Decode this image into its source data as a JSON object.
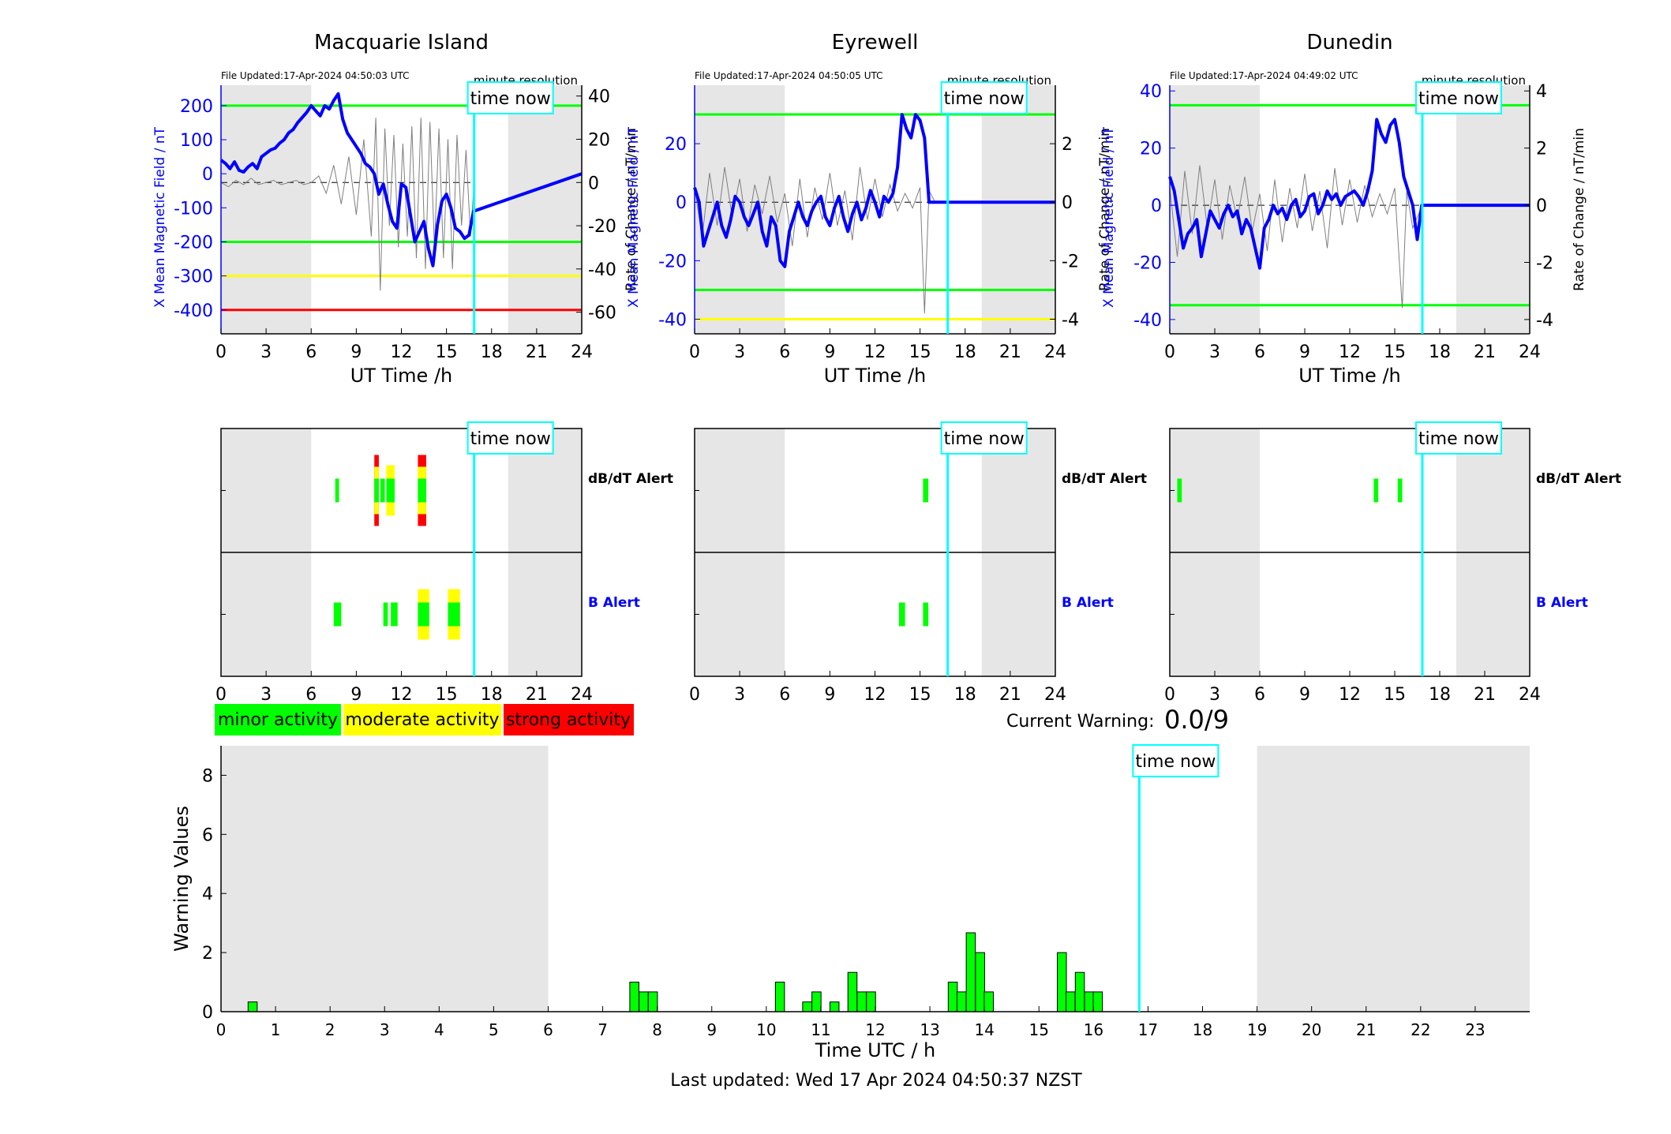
{
  "colors": {
    "minor": "#00ff00",
    "moderate": "#ffff00",
    "strong": "#ff0000",
    "now": "#00ffff",
    "field": "#0000ff",
    "night": "#e6e6e6"
  },
  "legend": {
    "minor": "minor activity",
    "moderate": "moderate activity",
    "strong": "strong activity"
  },
  "current_warning": {
    "label": "Current Warning:",
    "value": "0.0/9"
  },
  "footer": "Last updated: Wed 17 Apr 2024 04:50:37 NZST",
  "time_now_label": "time now",
  "minute_resolution_label": "minute resolution",
  "alert_labels": {
    "dbdt": "dB/dT Alert",
    "b": "B Alert"
  },
  "chart_data": [
    {
      "type": "line",
      "title": "Macquarie Island",
      "file_updated": "File Updated:17-Apr-2024 04:50:03 UTC",
      "xlabel": "UT Time /h",
      "ylabel": "X Mean Magnetic Field / nT",
      "y2label": "Rate of Change / nT/min",
      "xlim": [
        0,
        24
      ],
      "xticks": [
        0,
        3,
        6,
        9,
        12,
        15,
        18,
        21,
        24
      ],
      "ylim": [
        -470,
        260
      ],
      "yticks": [
        200,
        100,
        0,
        -100,
        -200,
        -300,
        -400
      ],
      "y2lim": [
        -70,
        45
      ],
      "y2ticks": [
        40,
        20,
        0,
        -20,
        -40,
        -60
      ],
      "thresholds": [
        {
          "value": 200,
          "color": "#00ff00"
        },
        {
          "value": -200,
          "color": "#00ff00"
        },
        {
          "value": -300,
          "color": "#ffff00"
        },
        {
          "value": -400,
          "color": "#ff0000"
        }
      ],
      "night_shading": [
        [
          0,
          6
        ],
        [
          19.1,
          24
        ]
      ],
      "time_now": 16.84,
      "series": [
        {
          "x": [
            0,
            0.3,
            0.6,
            0.9,
            1.2,
            1.5,
            1.8,
            2.1,
            2.4,
            2.7,
            3.0,
            3.3,
            3.6,
            3.9,
            4.2,
            4.5,
            4.8,
            5.1,
            5.4,
            5.7,
            6.0,
            6.3,
            6.6,
            6.9,
            7.2,
            7.5,
            7.8,
            8.1,
            8.4,
            8.7,
            9.0,
            9.3,
            9.6,
            9.9,
            10.2,
            10.5,
            10.8,
            11.1,
            11.4,
            11.7,
            12.0,
            12.3,
            12.6,
            12.9,
            13.2,
            13.5,
            13.8,
            14.1,
            14.4,
            14.7,
            15.0,
            15.3,
            15.6,
            15.9,
            16.2,
            16.5,
            16.8,
            24
          ],
          "y": [
            40,
            30,
            15,
            35,
            10,
            5,
            20,
            30,
            15,
            50,
            60,
            70,
            75,
            90,
            100,
            120,
            130,
            150,
            165,
            180,
            200,
            185,
            170,
            200,
            190,
            215,
            235,
            160,
            120,
            100,
            80,
            60,
            30,
            20,
            0,
            -60,
            -30,
            -90,
            -140,
            -160,
            -30,
            -40,
            -120,
            -200,
            -170,
            -140,
            -220,
            -270,
            -150,
            -80,
            -60,
            -100,
            -160,
            -170,
            -190,
            -180,
            -110,
            0
          ]
        },
        {
          "x": [
            0,
            0.5,
            1,
            1.5,
            2,
            2.5,
            3,
            3.5,
            4,
            4.5,
            5,
            5.5,
            6,
            6.5,
            7,
            7.5,
            8,
            8.5,
            9,
            9.5,
            10,
            10.3,
            10.6,
            10.9,
            11.2,
            11.5,
            11.8,
            12.1,
            12.4,
            12.7,
            13,
            13.3,
            13.6,
            13.9,
            14.2,
            14.5,
            14.8,
            15.1,
            15.4,
            15.7,
            16,
            16.3,
            16.6,
            16.84
          ],
          "y": [
            0,
            -2,
            1,
            -1,
            2,
            -1,
            0,
            1,
            -1,
            0,
            1,
            -1,
            0,
            3,
            -5,
            8,
            -10,
            12,
            -15,
            20,
            -25,
            30,
            -50,
            25,
            -20,
            22,
            -30,
            18,
            -25,
            26,
            -35,
            30,
            -40,
            28,
            -30,
            25,
            -35,
            20,
            -40,
            22,
            -20,
            15,
            -25,
            0
          ]
        }
      ]
    },
    {
      "type": "line",
      "title": "Eyrewell",
      "file_updated": "File Updated:17-Apr-2024 04:50:05 UTC",
      "xlabel": "UT Time /h",
      "ylabel": "X Mean Magnetic Field / nT",
      "y2label": "Rate of Change / nT/min",
      "xlim": [
        0,
        24
      ],
      "xticks": [
        0,
        3,
        6,
        9,
        12,
        15,
        18,
        21,
        24
      ],
      "ylim": [
        -45,
        40
      ],
      "yticks": [
        20,
        0,
        -20,
        -40
      ],
      "y2lim": [
        -4.5,
        4
      ],
      "y2ticks": [
        2,
        0,
        -2,
        -4
      ],
      "thresholds": [
        {
          "value": 30,
          "color": "#00ff00"
        },
        {
          "value": -30,
          "color": "#00ff00"
        },
        {
          "value": -40,
          "color": "#ffff00"
        }
      ],
      "night_shading": [
        [
          0,
          6
        ],
        [
          19.1,
          24
        ]
      ],
      "time_now": 16.84,
      "series": [
        {
          "x": [
            0,
            0.3,
            0.6,
            0.9,
            1.2,
            1.5,
            1.8,
            2.1,
            2.4,
            2.7,
            3.0,
            3.3,
            3.6,
            3.9,
            4.2,
            4.5,
            4.8,
            5.1,
            5.4,
            5.7,
            6.0,
            6.3,
            6.6,
            6.9,
            7.2,
            7.5,
            7.8,
            8.1,
            8.4,
            8.7,
            9.0,
            9.3,
            9.6,
            9.9,
            10.2,
            10.5,
            10.8,
            11.1,
            11.4,
            11.7,
            12.0,
            12.3,
            12.6,
            12.9,
            13.2,
            13.5,
            13.8,
            14.1,
            14.4,
            14.7,
            15.0,
            15.3,
            15.6,
            15.9,
            16.2,
            16.5,
            16.8,
            24
          ],
          "y": [
            5,
            0,
            -15,
            -10,
            -5,
            0,
            -8,
            -12,
            -6,
            2,
            0,
            -5,
            -8,
            -4,
            0,
            -10,
            -15,
            -5,
            -8,
            -20,
            -22,
            -10,
            -5,
            0,
            -5,
            -8,
            -3,
            0,
            2,
            -5,
            -8,
            -2,
            2,
            -5,
            -10,
            -4,
            0,
            -6,
            -2,
            4,
            0,
            -5,
            2,
            0,
            3,
            12,
            30,
            25,
            22,
            30,
            28,
            22,
            0,
            0,
            0,
            0,
            0,
            0
          ]
        },
        {
          "x": [
            0,
            0.5,
            1,
            1.5,
            2,
            2.5,
            3,
            3.5,
            4,
            4.5,
            5,
            5.5,
            6,
            6.5,
            7,
            7.5,
            8,
            8.5,
            9,
            9.5,
            10,
            10.5,
            11,
            11.5,
            12,
            12.5,
            13,
            13.5,
            14,
            14.5,
            15,
            15.3,
            15.6,
            16,
            16.84
          ],
          "y": [
            0.5,
            -1.2,
            1.0,
            -0.8,
            1.2,
            -0.5,
            0.8,
            -1.0,
            0.6,
            -0.4,
            0.9,
            -0.7,
            0.3,
            -1.5,
            0.8,
            -1.2,
            0.5,
            -0.6,
            1.0,
            -0.8,
            0.4,
            -1.3,
            1.2,
            -0.6,
            0.8,
            -0.5,
            0.6,
            -0.3,
            0.3,
            -0.2,
            0.5,
            -3.8,
            0.4,
            0,
            0
          ]
        }
      ]
    },
    {
      "type": "line",
      "title": "Dunedin",
      "file_updated": "File Updated:17-Apr-2024 04:49:02 UTC",
      "xlabel": "UT Time /h",
      "ylabel": "X Mean Magnetic Field / nT",
      "y2label": "Rate of Change / nT/min",
      "xlim": [
        0,
        24
      ],
      "xticks": [
        0,
        3,
        6,
        9,
        12,
        15,
        18,
        21,
        24
      ],
      "ylim": [
        -45,
        42
      ],
      "yticks": [
        40,
        20,
        0,
        -20,
        -40
      ],
      "y2lim": [
        -4.5,
        4.2
      ],
      "y2ticks": [
        4,
        2,
        0,
        -2,
        -4
      ],
      "thresholds": [
        {
          "value": 35,
          "color": "#00ff00"
        },
        {
          "value": -35,
          "color": "#00ff00"
        }
      ],
      "night_shading": [
        [
          0,
          6
        ],
        [
          19.1,
          24
        ]
      ],
      "time_now": 16.84,
      "series": [
        {
          "x": [
            0,
            0.3,
            0.6,
            0.9,
            1.2,
            1.5,
            1.8,
            2.1,
            2.4,
            2.7,
            3.0,
            3.3,
            3.6,
            3.9,
            4.2,
            4.5,
            4.8,
            5.1,
            5.4,
            5.7,
            6.0,
            6.3,
            6.6,
            6.9,
            7.2,
            7.5,
            7.8,
            8.1,
            8.4,
            8.7,
            9.0,
            9.3,
            9.6,
            9.9,
            10.2,
            10.5,
            10.8,
            11.1,
            11.4,
            11.7,
            12.0,
            12.3,
            12.6,
            12.9,
            13.2,
            13.5,
            13.8,
            14.1,
            14.4,
            14.7,
            15.0,
            15.3,
            15.6,
            15.9,
            16.2,
            16.5,
            16.8,
            24
          ],
          "y": [
            10,
            5,
            -5,
            -15,
            -10,
            -8,
            -5,
            -18,
            -10,
            -2,
            -5,
            -8,
            -3,
            0,
            -4,
            -2,
            -10,
            -5,
            -8,
            -15,
            -22,
            -8,
            -5,
            0,
            -3,
            -1,
            -5,
            0,
            2,
            -4,
            -2,
            3,
            4,
            -3,
            0,
            5,
            2,
            4,
            0,
            3,
            4,
            5,
            3,
            0,
            5,
            12,
            30,
            25,
            22,
            28,
            30,
            22,
            10,
            5,
            0,
            -12,
            0,
            0
          ]
        },
        {
          "x": [
            0,
            0.5,
            1,
            1.5,
            2,
            2.5,
            3,
            3.5,
            4,
            4.5,
            5,
            5.5,
            6,
            6.5,
            7,
            7.5,
            8,
            8.5,
            9,
            9.5,
            10,
            10.5,
            11,
            11.5,
            12,
            12.5,
            13,
            13.5,
            14,
            14.5,
            15,
            15.5,
            15.8,
            16.2,
            16.84
          ],
          "y": [
            0.6,
            -1.8,
            1.2,
            -1.0,
            1.4,
            -0.8,
            0.9,
            -1.2,
            0.7,
            -0.5,
            1.0,
            -0.9,
            0.4,
            -1.6,
            0.9,
            -1.3,
            0.6,
            -0.8,
            1.1,
            -0.9,
            0.5,
            -1.5,
            1.3,
            -0.7,
            0.9,
            -0.6,
            0.7,
            -0.4,
            0.4,
            -0.3,
            0.6,
            -3.6,
            0.5,
            -0.8,
            0
          ]
        }
      ]
    },
    {
      "type": "bar",
      "xlabel": "Time UTC / h",
      "ylabel": "Warning Values",
      "xlim": [
        0,
        24
      ],
      "xticks": [
        0,
        1,
        2,
        3,
        4,
        5,
        6,
        7,
        8,
        9,
        10,
        11,
        12,
        13,
        14,
        15,
        16,
        17,
        18,
        19,
        20,
        21,
        22,
        23
      ],
      "ylim": [
        0,
        9
      ],
      "yticks": [
        0,
        2,
        4,
        6,
        8
      ],
      "night_shading": [
        [
          0,
          6
        ],
        [
          19,
          24
        ]
      ],
      "time_now": 16.84,
      "bar_width_h": 0.167,
      "x": [
        0.58,
        7.58,
        7.75,
        7.92,
        10.25,
        10.75,
        10.92,
        11.25,
        11.58,
        11.75,
        11.92,
        13.42,
        13.58,
        13.75,
        13.92,
        14.08,
        15.42,
        15.58,
        15.75,
        15.92,
        16.08
      ],
      "values": [
        0.33,
        1.0,
        0.67,
        0.67,
        1.0,
        0.33,
        0.67,
        0.33,
        1.33,
        0.67,
        0.67,
        1.0,
        0.67,
        2.67,
        2.0,
        0.67,
        2.0,
        0.67,
        1.33,
        0.67,
        0.67
      ]
    },
    {
      "type": "alerts",
      "station": "Macquarie Island",
      "xlim": [
        0,
        24
      ],
      "xticks": [
        0,
        3,
        6,
        9,
        12,
        15,
        18,
        21,
        24
      ],
      "night_shading": [
        [
          0,
          6
        ],
        [
          19.1,
          24
        ]
      ],
      "time_now": 16.84,
      "dbdt": [
        {
          "x": 7.6,
          "w": 0.25,
          "level": "minor"
        },
        {
          "x": 10.2,
          "w": 0.3,
          "level": "strong"
        },
        {
          "x": 10.6,
          "w": 0.3,
          "level": "minor"
        },
        {
          "x": 11.0,
          "w": 0.55,
          "level": "moderate"
        },
        {
          "x": 13.1,
          "w": 0.55,
          "level": "strong"
        }
      ],
      "b": [
        {
          "x": 7.5,
          "w": 0.5,
          "level": "minor"
        },
        {
          "x": 10.8,
          "w": 0.3,
          "level": "minor"
        },
        {
          "x": 11.3,
          "w": 0.45,
          "level": "minor"
        },
        {
          "x": 13.1,
          "w": 0.75,
          "level": "moderate"
        },
        {
          "x": 15.1,
          "w": 0.8,
          "level": "moderate"
        }
      ]
    },
    {
      "type": "alerts",
      "station": "Eyrewell",
      "xlim": [
        0,
        24
      ],
      "xticks": [
        0,
        3,
        6,
        9,
        12,
        15,
        18,
        21,
        24
      ],
      "night_shading": [
        [
          0,
          6
        ],
        [
          19.1,
          24
        ]
      ],
      "time_now": 16.84,
      "dbdt": [
        {
          "x": 15.2,
          "w": 0.35,
          "level": "minor"
        }
      ],
      "b": [
        {
          "x": 13.6,
          "w": 0.4,
          "level": "minor"
        },
        {
          "x": 15.2,
          "w": 0.35,
          "level": "minor"
        }
      ]
    },
    {
      "type": "alerts",
      "station": "Dunedin",
      "xlim": [
        0,
        24
      ],
      "xticks": [
        0,
        3,
        6,
        9,
        12,
        15,
        18,
        21,
        24
      ],
      "night_shading": [
        [
          0,
          6
        ],
        [
          19.1,
          24
        ]
      ],
      "time_now": 16.84,
      "dbdt": [
        {
          "x": 0.5,
          "w": 0.3,
          "level": "minor"
        },
        {
          "x": 13.6,
          "w": 0.3,
          "level": "minor"
        },
        {
          "x": 15.2,
          "w": 0.3,
          "level": "minor"
        }
      ],
      "b": []
    }
  ]
}
